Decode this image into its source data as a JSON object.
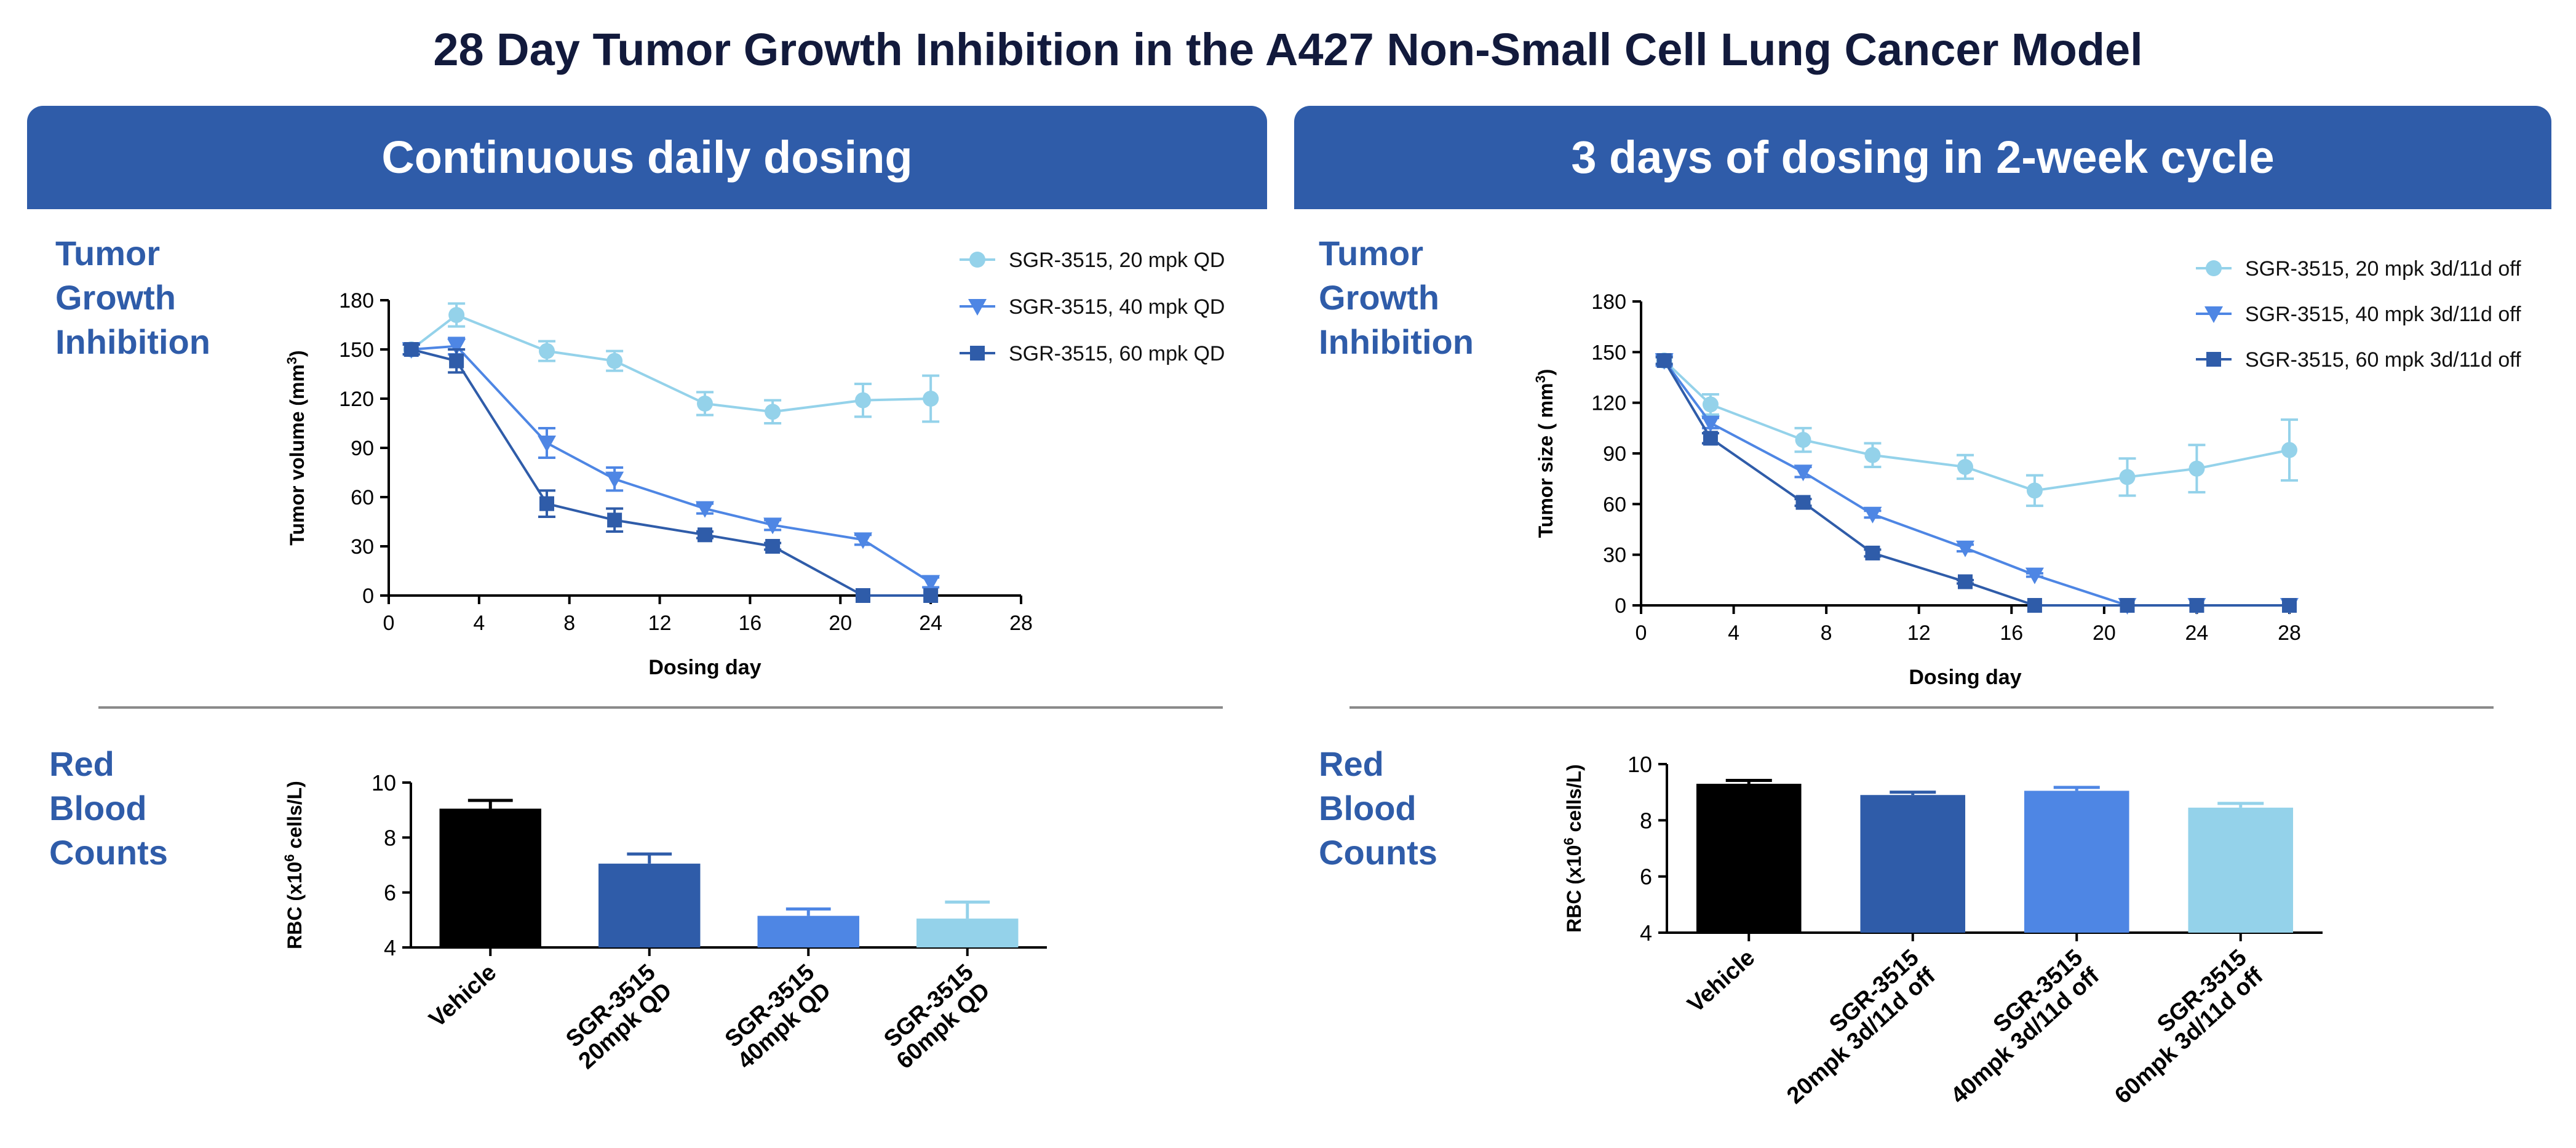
{
  "title": "28 Day Tumor Growth Inhibition in the A427 Non-Small Cell Lung Cancer Model",
  "panels": [
    {
      "header": "Continuous daily dosing",
      "tumor_label": [
        "Tumor",
        "Growth",
        "Inhibition"
      ],
      "rbc_label": [
        "Red",
        "Blood",
        "Counts"
      ]
    },
    {
      "header": "3 days of dosing in 2-week cycle",
      "tumor_label": [
        "Tumor",
        "Growth",
        "Inhibition"
      ],
      "rbc_label": [
        "Red",
        "Blood",
        "Counts"
      ]
    }
  ],
  "colors": {
    "light": "#94d2ea",
    "mid": "#4e86e4",
    "dark": "#2f5ca9",
    "black": "#000000",
    "header": "#2f5ca9"
  },
  "chart_data": [
    {
      "id": "tgi-continuous",
      "type": "line",
      "title": "",
      "xlabel": "Dosing day",
      "ylabel": "Tumor volume (mm³)",
      "xlim": [
        0,
        28
      ],
      "ylim": [
        0,
        180
      ],
      "xticks": [
        0,
        4,
        8,
        12,
        16,
        20,
        24,
        28
      ],
      "yticks": [
        0,
        30,
        60,
        90,
        120,
        150,
        180
      ],
      "legend": "top-right",
      "series": [
        {
          "name": "SGR-3515, 20 mpk QD",
          "color": "#94d2ea",
          "marker": "circle",
          "x": [
            1,
            3,
            7,
            10,
            14,
            17,
            21,
            24
          ],
          "y": [
            150,
            171,
            149,
            143,
            117,
            112,
            119,
            120
          ],
          "err": [
            3,
            7,
            6,
            6,
            7,
            7,
            10,
            14
          ]
        },
        {
          "name": "SGR-3515, 40 mpk QD",
          "color": "#4e86e4",
          "marker": "triangle-down",
          "x": [
            1,
            3,
            7,
            10,
            14,
            17,
            21,
            24
          ],
          "y": [
            150,
            152,
            93,
            71,
            53,
            43,
            34,
            8
          ],
          "err": [
            3,
            5,
            9,
            7,
            3,
            3,
            3,
            3
          ]
        },
        {
          "name": "SGR-3515, 60 mpk QD",
          "color": "#2f5ca9",
          "marker": "square",
          "x": [
            1,
            3,
            7,
            10,
            14,
            17,
            21,
            24
          ],
          "y": [
            150,
            143,
            56,
            46,
            37,
            30,
            0,
            0
          ],
          "err": [
            3,
            7,
            8,
            7,
            2,
            2,
            0,
            0
          ]
        }
      ]
    },
    {
      "id": "tgi-cycle",
      "type": "line",
      "title": "",
      "xlabel": "Dosing day",
      "ylabel": "Tumor size ( mm³)",
      "xlim": [
        0,
        28
      ],
      "ylim": [
        0,
        180
      ],
      "xticks": [
        0,
        4,
        8,
        12,
        16,
        20,
        24,
        28
      ],
      "yticks": [
        0,
        30,
        60,
        90,
        120,
        150,
        180
      ],
      "legend": "top-right",
      "series": [
        {
          "name": "SGR-3515, 20 mpk 3d/11d off",
          "color": "#94d2ea",
          "marker": "circle",
          "x": [
            1,
            3,
            7,
            10,
            14,
            17,
            21,
            24,
            28
          ],
          "y": [
            145,
            119,
            98,
            89,
            82,
            68,
            76,
            81,
            92
          ],
          "err": [
            3,
            6,
            7,
            7,
            7,
            9,
            11,
            14,
            18
          ]
        },
        {
          "name": "SGR-3515, 40 mpk 3d/11d off",
          "color": "#4e86e4",
          "marker": "triangle-down",
          "x": [
            1,
            3,
            7,
            10,
            14,
            17,
            21,
            24,
            28
          ],
          "y": [
            145,
            108,
            79,
            54,
            34,
            18,
            0,
            0,
            0
          ],
          "err": [
            3,
            3,
            3,
            2,
            2,
            1,
            0,
            0,
            0
          ]
        },
        {
          "name": "SGR-3515, 60 mpk 3d/11d off",
          "color": "#2f5ca9",
          "marker": "square",
          "x": [
            1,
            3,
            7,
            10,
            14,
            17,
            21,
            24,
            28
          ],
          "y": [
            145,
            99,
            61,
            31,
            14,
            0,
            0,
            0,
            0
          ],
          "err": [
            2,
            3,
            2,
            2,
            1,
            0,
            0,
            0,
            0
          ]
        }
      ]
    },
    {
      "id": "rbc-continuous",
      "type": "bar",
      "ylabel_pre": "RBC (x10",
      "ylabel_sup": "6",
      "ylabel_post": " cells/L)",
      "ylim": [
        4,
        10
      ],
      "yticks": [
        4,
        6,
        8,
        10
      ],
      "categories": [
        [
          "Vehicle"
        ],
        [
          "SGR-3515",
          "20mpk QD"
        ],
        [
          "SGR-3515",
          "40mpk QD"
        ],
        [
          "SGR-3515",
          "60mpk QD"
        ]
      ],
      "values": [
        9.05,
        7.05,
        5.15,
        5.05
      ],
      "err": [
        0.3,
        0.35,
        0.25,
        0.6
      ],
      "colors": [
        "#000000",
        "#2f5ca9",
        "#4e86e4",
        "#94d2ea"
      ]
    },
    {
      "id": "rbc-cycle",
      "type": "bar",
      "ylabel_pre": "RBC (x10",
      "ylabel_sup": "6",
      "ylabel_post": " cells/L)",
      "ylim": [
        4,
        10
      ],
      "yticks": [
        4,
        6,
        8,
        10
      ],
      "categories": [
        [
          "Vehicle"
        ],
        [
          "SGR-3515",
          "20mpk 3d/11d off"
        ],
        [
          "SGR-3515",
          "40mpk 3d/11d off"
        ],
        [
          "SGR-3515",
          "60mpk 3d/11d off"
        ]
      ],
      "values": [
        9.3,
        8.9,
        9.05,
        8.45
      ],
      "err": [
        0.12,
        0.1,
        0.12,
        0.15
      ],
      "colors": [
        "#000000",
        "#2f5ca9",
        "#4e86e4",
        "#94d2ea"
      ]
    }
  ]
}
